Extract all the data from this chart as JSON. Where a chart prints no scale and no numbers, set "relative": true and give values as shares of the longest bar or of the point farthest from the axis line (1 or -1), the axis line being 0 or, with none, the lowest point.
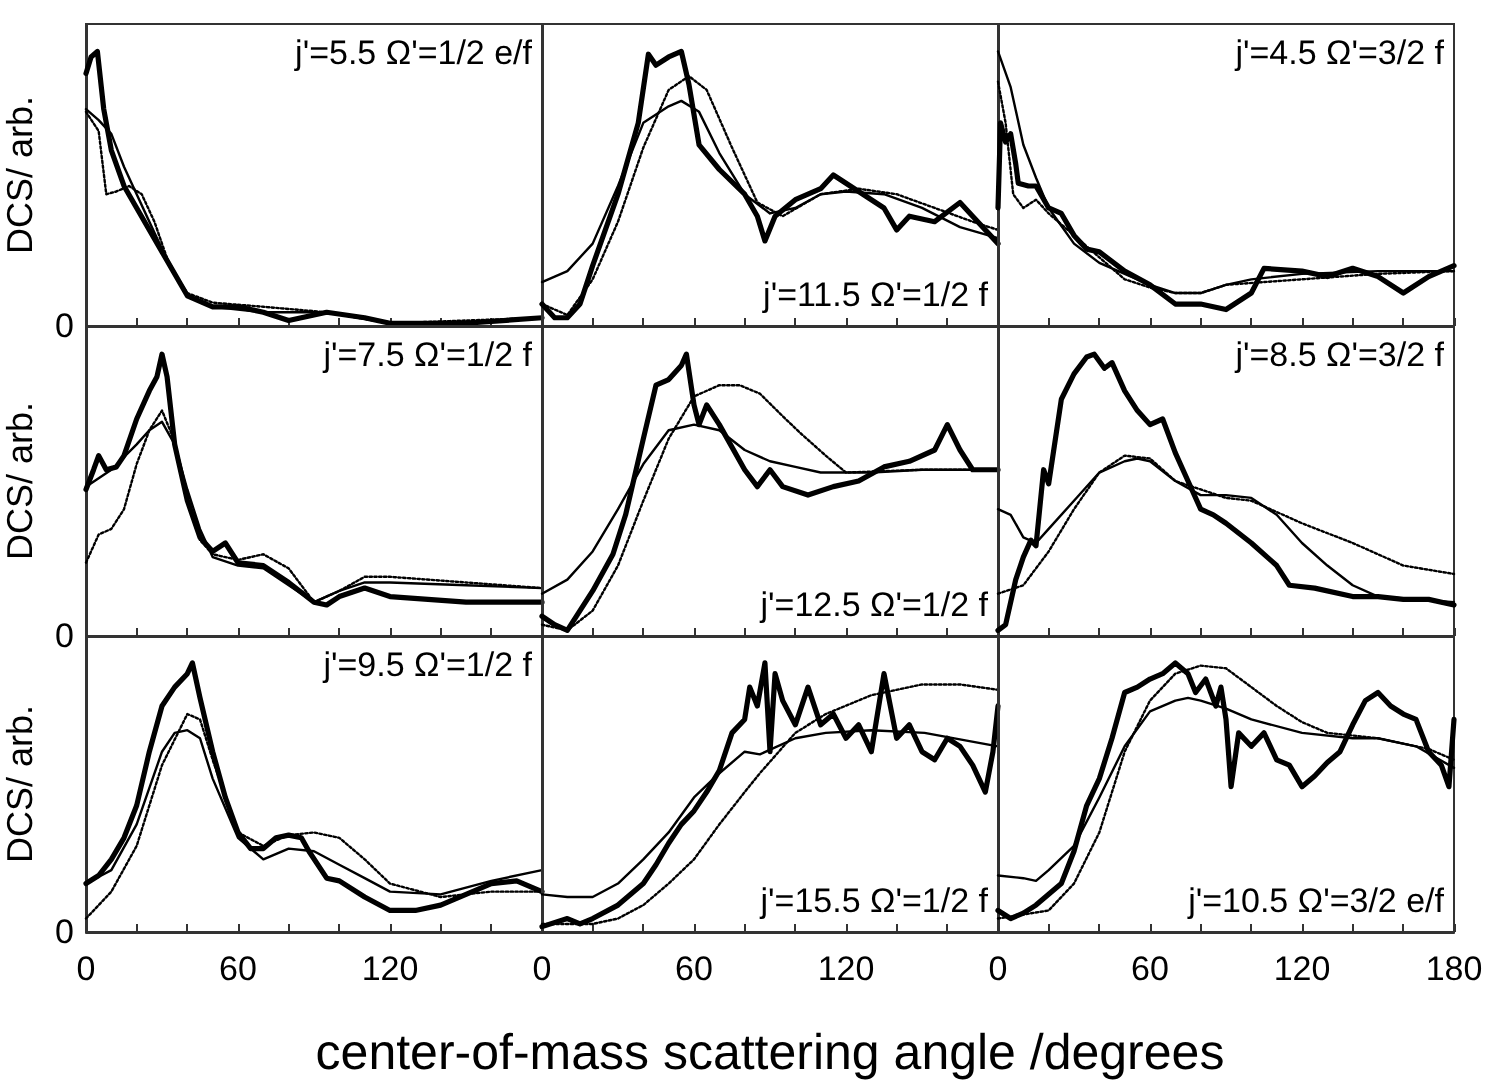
{
  "chart_data": [
    {
      "type": "line",
      "ylabel": "DCS/ arb.",
      "annotations": [
        "j'=5.5 Ω'=1/2 e/f",
        "0"
      ],
      "relative": true,
      "xlim": [
        0,
        180
      ],
      "xticks": [
        0,
        {
          "value": 20,
          "label": null
        },
        {
          "value": 40,
          "label": null
        },
        60,
        {
          "value": 80,
          "label": null
        },
        {
          "value": 100,
          "label": null
        },
        120,
        {
          "value": 140,
          "label": null
        },
        {
          "value": 160,
          "label": null
        },
        {
          "value": 180,
          "label": null
        }
      ],
      "tick_labels": "y",
      "marker": "none",
      "series": [
        {
          "color": "#000000",
          "line_style": "solid",
          "x": [
            0,
            2,
            4.5,
            7,
            10,
            15,
            20,
            30,
            40,
            50,
            60,
            70,
            80,
            95,
            110,
            120,
            150,
            180
          ],
          "values": [
            0.92,
            0.98,
            1.0,
            0.79,
            0.64,
            0.51,
            0.43,
            0.27,
            0.11,
            0.07,
            0.07,
            0.05,
            0.02,
            0.05,
            0.03,
            0.01,
            0.01,
            0.03
          ]
        },
        {
          "color": "#000000",
          "line_style": "solid",
          "x": [
            0,
            5,
            10,
            15,
            20,
            30,
            40,
            50,
            70,
            95,
            120,
            150,
            180
          ],
          "values": [
            0.79,
            0.75,
            0.7,
            0.58,
            0.48,
            0.28,
            0.11,
            0.07,
            0.05,
            0.05,
            0.01,
            0.01,
            0.03
          ]
        },
        {
          "color": "#000000",
          "line_style": "dotted",
          "x": [
            0,
            5,
            8,
            12,
            17,
            22,
            27,
            33,
            40,
            50,
            70,
            95,
            120,
            180
          ],
          "values": [
            0.78,
            0.71,
            0.48,
            0.49,
            0.51,
            0.48,
            0.38,
            0.22,
            0.12,
            0.085,
            0.07,
            0.05,
            0.01,
            0.03
          ]
        }
      ]
    },
    {
      "type": "line",
      "annotations": [
        "j'=11.5 Ω'=1/2 f"
      ],
      "relative": true,
      "xlim": [
        0,
        180
      ],
      "xticks": [
        0,
        {
          "value": 20,
          "label": null
        },
        {
          "value": 40,
          "label": null
        },
        60,
        {
          "value": 80,
          "label": null
        },
        {
          "value": 100,
          "label": null
        },
        120,
        {
          "value": 140,
          "label": null
        },
        {
          "value": 160,
          "label": null
        },
        {
          "value": 180,
          "label": null
        }
      ],
      "tick_labels": false,
      "marker": "none",
      "series": [
        {
          "color": "#000000",
          "line_style": "solid",
          "x": [
            0,
            5,
            10,
            15,
            20,
            30,
            38,
            42,
            45,
            50,
            55,
            58,
            62,
            70,
            80,
            85,
            88,
            92,
            100,
            110,
            115,
            125,
            135,
            140,
            145,
            155,
            165,
            170,
            180
          ],
          "values": [
            0.08,
            0.03,
            0.03,
            0.08,
            0.22,
            0.48,
            0.74,
            0.99,
            0.95,
            0.98,
            1.0,
            0.88,
            0.66,
            0.57,
            0.48,
            0.4,
            0.31,
            0.4,
            0.46,
            0.5,
            0.55,
            0.49,
            0.43,
            0.35,
            0.4,
            0.38,
            0.45,
            0.4,
            0.3
          ]
        },
        {
          "color": "#000000",
          "line_style": "solid",
          "x": [
            0,
            10,
            20,
            30,
            40,
            50,
            55,
            62,
            70,
            80,
            90,
            100,
            110,
            120,
            135,
            150,
            165,
            180
          ],
          "values": [
            0.16,
            0.2,
            0.3,
            0.51,
            0.74,
            0.8,
            0.82,
            0.78,
            0.63,
            0.48,
            0.41,
            0.43,
            0.48,
            0.49,
            0.48,
            0.43,
            0.36,
            0.32
          ]
        },
        {
          "color": "#000000",
          "line_style": "dotted",
          "x": [
            0,
            10,
            20,
            30,
            40,
            50,
            58,
            65,
            75,
            85,
            95,
            110,
            125,
            140,
            155,
            170,
            180
          ],
          "values": [
            0.08,
            0.04,
            0.17,
            0.38,
            0.65,
            0.86,
            0.91,
            0.86,
            0.65,
            0.45,
            0.4,
            0.48,
            0.5,
            0.48,
            0.43,
            0.38,
            0.35
          ]
        }
      ]
    },
    {
      "type": "line",
      "annotations": [
        "j'=4.5 Ω'=3/2 f"
      ],
      "relative": true,
      "xlim": [
        0,
        180
      ],
      "xticks": [
        0,
        {
          "value": 20,
          "label": null
        },
        {
          "value": 40,
          "label": null
        },
        60,
        {
          "value": 80,
          "label": null
        },
        {
          "value": 100,
          "label": null
        },
        120,
        {
          "value": 140,
          "label": null
        },
        {
          "value": 160,
          "label": null
        },
        180
      ],
      "tick_labels": false,
      "marker": "none",
      "series": [
        {
          "color": "#000000",
          "line_style": "solid",
          "x": [
            0,
            1,
            3,
            5,
            7,
            8,
            12,
            15,
            20,
            25,
            30,
            35,
            40,
            50,
            60,
            70,
            80,
            90,
            100,
            105,
            120,
            130,
            140,
            150,
            160,
            170,
            180
          ],
          "values": [
            0.43,
            0.74,
            0.67,
            0.7,
            0.59,
            0.52,
            0.51,
            0.51,
            0.43,
            0.41,
            0.33,
            0.28,
            0.27,
            0.2,
            0.15,
            0.08,
            0.08,
            0.06,
            0.12,
            0.21,
            0.2,
            0.18,
            0.21,
            0.18,
            0.12,
            0.18,
            0.22
          ]
        },
        {
          "color": "#000000",
          "line_style": "solid",
          "x": [
            0,
            5,
            10,
            15,
            20,
            30,
            40,
            50,
            60,
            70,
            80,
            90,
            100,
            120,
            150,
            180
          ],
          "values": [
            1.0,
            0.87,
            0.66,
            0.54,
            0.43,
            0.3,
            0.23,
            0.19,
            0.15,
            0.12,
            0.12,
            0.15,
            0.17,
            0.19,
            0.2,
            0.2
          ]
        },
        {
          "color": "#000000",
          "line_style": "dotted",
          "x": [
            0,
            3,
            6,
            10,
            15,
            20,
            30,
            40,
            50,
            60,
            70,
            80,
            90,
            120,
            150,
            180
          ],
          "values": [
            0.89,
            0.74,
            0.48,
            0.43,
            0.46,
            0.41,
            0.33,
            0.25,
            0.17,
            0.14,
            0.12,
            0.12,
            0.15,
            0.17,
            0.19,
            0.2
          ]
        }
      ]
    },
    {
      "type": "line",
      "ylabel": "DCS/ arb.",
      "annotations": [
        "j'=7.5 Ω'=1/2 f",
        "0"
      ],
      "relative": true,
      "xlim": [
        0,
        180
      ],
      "xticks": [
        0,
        {
          "value": 20,
          "label": null
        },
        {
          "value": 40,
          "label": null
        },
        60,
        {
          "value": 80,
          "label": null
        },
        {
          "value": 100,
          "label": null
        },
        120,
        {
          "value": 140,
          "label": null
        },
        {
          "value": 160,
          "label": null
        },
        {
          "value": 180,
          "label": null
        }
      ],
      "tick_labels": "y",
      "marker": "none",
      "series": [
        {
          "color": "#000000",
          "line_style": "solid",
          "x": [
            0,
            3,
            5,
            8,
            12,
            15,
            20,
            25,
            28,
            30,
            32,
            35,
            40,
            45,
            50,
            55,
            60,
            70,
            80,
            90,
            95,
            100,
            110,
            120,
            135,
            150,
            165,
            180
          ],
          "values": [
            0.52,
            0.59,
            0.64,
            0.59,
            0.6,
            0.64,
            0.77,
            0.87,
            0.92,
            1.0,
            0.92,
            0.68,
            0.48,
            0.35,
            0.3,
            0.33,
            0.26,
            0.25,
            0.19,
            0.12,
            0.11,
            0.14,
            0.17,
            0.14,
            0.13,
            0.12,
            0.12,
            0.12
          ]
        },
        {
          "color": "#000000",
          "line_style": "solid",
          "x": [
            0,
            10,
            20,
            25,
            30,
            35,
            40,
            45,
            50,
            60,
            70,
            80,
            90,
            100,
            110,
            120,
            150,
            180
          ],
          "values": [
            0.53,
            0.59,
            0.68,
            0.73,
            0.76,
            0.68,
            0.52,
            0.38,
            0.28,
            0.25,
            0.24,
            0.18,
            0.12,
            0.16,
            0.19,
            0.19,
            0.18,
            0.17
          ]
        },
        {
          "color": "#000000",
          "line_style": "dotted",
          "x": [
            0,
            5,
            10,
            15,
            20,
            25,
            30,
            35,
            40,
            45,
            50,
            60,
            70,
            80,
            90,
            100,
            110,
            120,
            150,
            180
          ],
          "values": [
            0.26,
            0.36,
            0.38,
            0.45,
            0.61,
            0.73,
            0.8,
            0.69,
            0.5,
            0.34,
            0.29,
            0.27,
            0.29,
            0.24,
            0.12,
            0.16,
            0.21,
            0.21,
            0.19,
            0.17
          ]
        }
      ]
    },
    {
      "type": "line",
      "annotations": [
        "j'=12.5 Ω'=1/2 f"
      ],
      "relative": true,
      "xlim": [
        0,
        180
      ],
      "xticks": [
        0,
        {
          "value": 20,
          "label": null
        },
        {
          "value": 40,
          "label": null
        },
        60,
        {
          "value": 80,
          "label": null
        },
        {
          "value": 100,
          "label": null
        },
        120,
        {
          "value": 140,
          "label": null
        },
        {
          "value": 160,
          "label": null
        },
        {
          "value": 180,
          "label": null
        }
      ],
      "tick_labels": false,
      "marker": "none",
      "series": [
        {
          "color": "#000000",
          "line_style": "solid",
          "x": [
            0,
            5,
            10,
            15,
            20,
            28,
            33,
            40,
            45,
            50,
            55,
            57,
            60,
            62,
            65,
            70,
            80,
            85,
            90,
            95,
            105,
            115,
            125,
            135,
            145,
            155,
            160,
            165,
            170,
            180
          ],
          "values": [
            0.07,
            0.04,
            0.02,
            0.09,
            0.16,
            0.29,
            0.43,
            0.7,
            0.89,
            0.91,
            0.96,
            1.0,
            0.82,
            0.75,
            0.82,
            0.75,
            0.59,
            0.53,
            0.59,
            0.53,
            0.5,
            0.53,
            0.55,
            0.6,
            0.62,
            0.66,
            0.75,
            0.66,
            0.59,
            0.59
          ]
        },
        {
          "color": "#000000",
          "line_style": "solid",
          "x": [
            0,
            10,
            20,
            30,
            40,
            50,
            60,
            70,
            80,
            90,
            100,
            110,
            130,
            150,
            180
          ],
          "values": [
            0.15,
            0.2,
            0.3,
            0.45,
            0.61,
            0.73,
            0.75,
            0.73,
            0.66,
            0.62,
            0.6,
            0.58,
            0.58,
            0.59,
            0.59
          ]
        },
        {
          "color": "#000000",
          "line_style": "dotted",
          "x": [
            0,
            10,
            20,
            30,
            40,
            50,
            60,
            70,
            78,
            86,
            95,
            102,
            112,
            120,
            150,
            180
          ],
          "values": [
            0.04,
            0.02,
            0.09,
            0.25,
            0.48,
            0.7,
            0.85,
            0.89,
            0.89,
            0.86,
            0.78,
            0.72,
            0.64,
            0.58,
            0.59,
            0.59
          ]
        }
      ]
    },
    {
      "type": "line",
      "annotations": [
        "j'=8.5 Ω'=3/2 f"
      ],
      "relative": true,
      "xlim": [
        0,
        180
      ],
      "xticks": [
        0,
        {
          "value": 20,
          "label": null
        },
        {
          "value": 40,
          "label": null
        },
        60,
        {
          "value": 80,
          "label": null
        },
        {
          "value": 100,
          "label": null
        },
        120,
        {
          "value": 140,
          "label": null
        },
        {
          "value": 160,
          "label": null
        },
        180
      ],
      "tick_labels": false,
      "marker": "none",
      "series": [
        {
          "color": "#000000",
          "line_style": "solid",
          "x": [
            0,
            3,
            7,
            10,
            13,
            15,
            18,
            20,
            25,
            30,
            35,
            38,
            42,
            45,
            50,
            55,
            60,
            65,
            70,
            75,
            80,
            85,
            90,
            100,
            110,
            115,
            125,
            140,
            150,
            160,
            170,
            180
          ],
          "values": [
            0.02,
            0.04,
            0.2,
            0.28,
            0.34,
            0.32,
            0.59,
            0.54,
            0.84,
            0.93,
            0.99,
            1.0,
            0.95,
            0.97,
            0.87,
            0.8,
            0.75,
            0.77,
            0.65,
            0.55,
            0.45,
            0.43,
            0.4,
            0.33,
            0.25,
            0.18,
            0.17,
            0.14,
            0.14,
            0.13,
            0.13,
            0.11
          ]
        },
        {
          "color": "#000000",
          "line_style": "solid",
          "x": [
            0,
            5,
            10,
            15,
            20,
            30,
            40,
            50,
            55,
            60,
            70,
            80,
            90,
            100,
            110,
            120,
            130,
            140,
            150,
            165,
            180
          ],
          "values": [
            0.45,
            0.43,
            0.35,
            0.33,
            0.38,
            0.48,
            0.58,
            0.62,
            0.63,
            0.62,
            0.55,
            0.5,
            0.5,
            0.49,
            0.43,
            0.33,
            0.25,
            0.18,
            0.14,
            0.13,
            0.12
          ]
        },
        {
          "color": "#000000",
          "line_style": "dotted",
          "x": [
            0,
            10,
            20,
            30,
            40,
            50,
            60,
            70,
            80,
            90,
            100,
            110,
            120,
            140,
            160,
            180
          ],
          "values": [
            0.15,
            0.18,
            0.3,
            0.45,
            0.58,
            0.64,
            0.63,
            0.55,
            0.52,
            0.49,
            0.48,
            0.44,
            0.4,
            0.33,
            0.25,
            0.22
          ]
        }
      ]
    },
    {
      "type": "line",
      "ylabel": "DCS/ arb.",
      "annotations": [
        "j'=9.5 Ω'=1/2 f",
        "0"
      ],
      "relative": true,
      "xlim": [
        0,
        180
      ],
      "xticks": [
        0,
        {
          "value": 20,
          "label": null
        },
        {
          "value": 40,
          "label": null
        },
        60,
        {
          "value": 80,
          "label": null
        },
        {
          "value": 100,
          "label": null
        },
        120,
        {
          "value": 140,
          "label": null
        },
        {
          "value": 160,
          "label": null
        },
        {
          "value": 180,
          "label": null
        }
      ],
      "marker": "none",
      "series": [
        {
          "color": "#000000",
          "line_style": "solid",
          "x": [
            0,
            5,
            10,
            15,
            20,
            25,
            30,
            35,
            40,
            42,
            45,
            50,
            55,
            60,
            65,
            70,
            75,
            80,
            85,
            88,
            95,
            100,
            110,
            120,
            130,
            140,
            150,
            160,
            170,
            180
          ],
          "values": [
            0.18,
            0.21,
            0.27,
            0.35,
            0.47,
            0.67,
            0.84,
            0.91,
            0.96,
            1.0,
            0.87,
            0.67,
            0.5,
            0.37,
            0.31,
            0.31,
            0.35,
            0.36,
            0.35,
            0.3,
            0.2,
            0.19,
            0.13,
            0.08,
            0.08,
            0.1,
            0.14,
            0.18,
            0.19,
            0.15
          ]
        },
        {
          "color": "#000000",
          "line_style": "solid",
          "x": [
            0,
            10,
            20,
            30,
            35,
            40,
            45,
            50,
            60,
            70,
            80,
            90,
            100,
            110,
            120,
            140,
            160,
            180
          ],
          "values": [
            0.18,
            0.23,
            0.4,
            0.67,
            0.74,
            0.75,
            0.72,
            0.57,
            0.35,
            0.27,
            0.31,
            0.3,
            0.25,
            0.2,
            0.15,
            0.14,
            0.19,
            0.23
          ]
        },
        {
          "color": "#000000",
          "line_style": "dotted",
          "x": [
            0,
            10,
            20,
            30,
            40,
            45,
            50,
            60,
            70,
            80,
            90,
            100,
            110,
            120,
            140,
            160,
            180
          ],
          "values": [
            0.05,
            0.15,
            0.32,
            0.62,
            0.81,
            0.79,
            0.64,
            0.37,
            0.32,
            0.36,
            0.37,
            0.35,
            0.27,
            0.18,
            0.13,
            0.15,
            0.15
          ]
        }
      ]
    },
    {
      "type": "line",
      "xlabel": "center-of-mass scattering angle /degrees",
      "annotations": [
        "j'=15.5 Ω'=1/2 f"
      ],
      "relative": true,
      "xlim": [
        0,
        180
      ],
      "xticks": [
        0,
        {
          "value": 20,
          "label": null
        },
        {
          "value": 40,
          "label": null
        },
        60,
        {
          "value": 80,
          "label": null
        },
        {
          "value": 100,
          "label": null
        },
        120,
        {
          "value": 140,
          "label": null
        },
        {
          "value": 160,
          "label": null
        },
        {
          "value": 180,
          "label": null
        }
      ],
      "tick_labels": "x",
      "marker": "none",
      "series": [
        {
          "color": "#000000",
          "line_style": "solid",
          "x": [
            0,
            10,
            15,
            20,
            30,
            40,
            45,
            50,
            55,
            60,
            65,
            70,
            75,
            80,
            82,
            85,
            88,
            90,
            92,
            95,
            100,
            105,
            110,
            115,
            120,
            125,
            130,
            135,
            140,
            145,
            150,
            155,
            160,
            165,
            170,
            175,
            178,
            180
          ],
          "values": [
            0.02,
            0.05,
            0.03,
            0.05,
            0.1,
            0.18,
            0.25,
            0.33,
            0.4,
            0.45,
            0.52,
            0.6,
            0.74,
            0.79,
            0.91,
            0.84,
            1.0,
            0.67,
            0.96,
            0.86,
            0.77,
            0.91,
            0.77,
            0.81,
            0.72,
            0.77,
            0.67,
            0.96,
            0.72,
            0.77,
            0.67,
            0.64,
            0.72,
            0.69,
            0.62,
            0.52,
            0.67,
            0.84
          ]
        },
        {
          "color": "#000000",
          "line_style": "solid",
          "x": [
            0,
            10,
            20,
            30,
            40,
            50,
            60,
            70,
            80,
            86,
            100,
            112,
            130,
            151,
            180
          ],
          "values": [
            0.14,
            0.13,
            0.13,
            0.18,
            0.27,
            0.37,
            0.5,
            0.59,
            0.67,
            0.66,
            0.72,
            0.74,
            0.75,
            0.74,
            0.69
          ]
        },
        {
          "color": "#000000",
          "line_style": "dotted",
          "x": [
            0,
            20,
            30,
            40,
            50,
            60,
            70,
            80,
            86,
            100,
            112,
            130,
            150,
            165,
            180
          ],
          "values": [
            0.03,
            0.03,
            0.05,
            0.1,
            0.18,
            0.27,
            0.4,
            0.52,
            0.59,
            0.74,
            0.81,
            0.88,
            0.92,
            0.92,
            0.9
          ]
        }
      ]
    },
    {
      "type": "line",
      "annotations": [
        "j'=10.5 Ω'=3/2 e/f"
      ],
      "relative": true,
      "xlim": [
        0,
        180
      ],
      "xticks": [
        0,
        {
          "value": 20,
          "label": null
        },
        {
          "value": 40,
          "label": null
        },
        60,
        {
          "value": 80,
          "label": null
        },
        {
          "value": 100,
          "label": null
        },
        120,
        {
          "value": 140,
          "label": null
        },
        {
          "value": 160,
          "label": null
        },
        180
      ],
      "tick_labels": "x",
      "marker": "none",
      "series": [
        {
          "color": "#000000",
          "line_style": "solid",
          "x": [
            0,
            5,
            10,
            15,
            20,
            25,
            30,
            35,
            40,
            45,
            50,
            55,
            60,
            65,
            70,
            75,
            78,
            82,
            86,
            88,
            90,
            92,
            95,
            100,
            105,
            110,
            115,
            120,
            125,
            130,
            135,
            140,
            145,
            150,
            155,
            160,
            165,
            170,
            175,
            178,
            180
          ],
          "values": [
            0.08,
            0.05,
            0.07,
            0.1,
            0.14,
            0.18,
            0.3,
            0.47,
            0.57,
            0.72,
            0.89,
            0.91,
            0.94,
            0.96,
            1.0,
            0.96,
            0.89,
            0.94,
            0.84,
            0.91,
            0.79,
            0.54,
            0.74,
            0.69,
            0.74,
            0.64,
            0.62,
            0.54,
            0.58,
            0.63,
            0.67,
            0.77,
            0.86,
            0.89,
            0.84,
            0.81,
            0.79,
            0.67,
            0.62,
            0.54,
            0.79
          ]
        },
        {
          "color": "#000000",
          "line_style": "solid",
          "x": [
            0,
            10,
            15,
            20,
            30,
            40,
            50,
            60,
            70,
            75,
            80,
            90,
            100,
            120,
            140,
            150,
            165,
            180
          ],
          "values": [
            0.21,
            0.2,
            0.19,
            0.23,
            0.32,
            0.5,
            0.69,
            0.82,
            0.86,
            0.87,
            0.86,
            0.83,
            0.79,
            0.74,
            0.72,
            0.72,
            0.69,
            0.61
          ]
        },
        {
          "color": "#000000",
          "line_style": "dotted",
          "x": [
            0,
            20,
            30,
            40,
            50,
            60,
            70,
            80,
            90,
            100,
            110,
            120,
            130,
            140,
            150,
            160,
            170,
            180
          ],
          "values": [
            0.05,
            0.08,
            0.18,
            0.37,
            0.67,
            0.86,
            0.96,
            0.99,
            0.98,
            0.91,
            0.84,
            0.78,
            0.74,
            0.73,
            0.72,
            0.7,
            0.68,
            0.64
          ]
        }
      ]
    }
  ]
}
